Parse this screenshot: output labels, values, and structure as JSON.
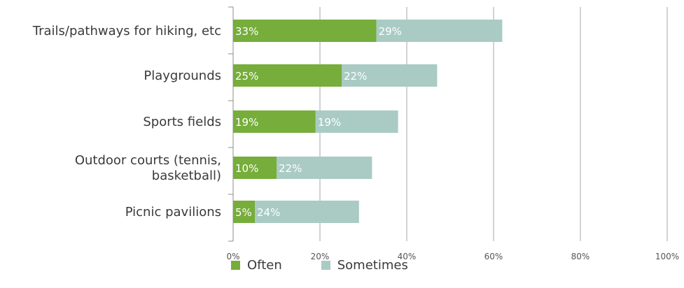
{
  "chart_data": {
    "type": "bar",
    "orientation": "horizontal",
    "stacked": true,
    "categories": [
      [
        "Trails/pathways for hiking, etc"
      ],
      [
        "Playgrounds"
      ],
      [
        "Sports fields"
      ],
      [
        "Outdoor courts (tennis,",
        "basketball)"
      ],
      [
        "Picnic pavilions"
      ]
    ],
    "series": [
      {
        "name": "Often",
        "values": [
          33,
          25,
          19,
          10,
          5
        ],
        "labels": [
          "33%",
          "25%",
          "19%",
          "10%",
          "5%"
        ],
        "color": "#76ad3b"
      },
      {
        "name": "Sometimes",
        "values": [
          29,
          22,
          19,
          22,
          24
        ],
        "labels": [
          "29%",
          "22%",
          "19%",
          "22%",
          "24%"
        ],
        "color": "#a9cbc3"
      }
    ],
    "xlim": [
      0,
      100
    ],
    "xticks": [
      "0%",
      "20%",
      "40%",
      "60%",
      "80%",
      "100%"
    ],
    "grid": true,
    "legend_position": "bottom",
    "title": "",
    "xlabel": "",
    "ylabel": ""
  }
}
